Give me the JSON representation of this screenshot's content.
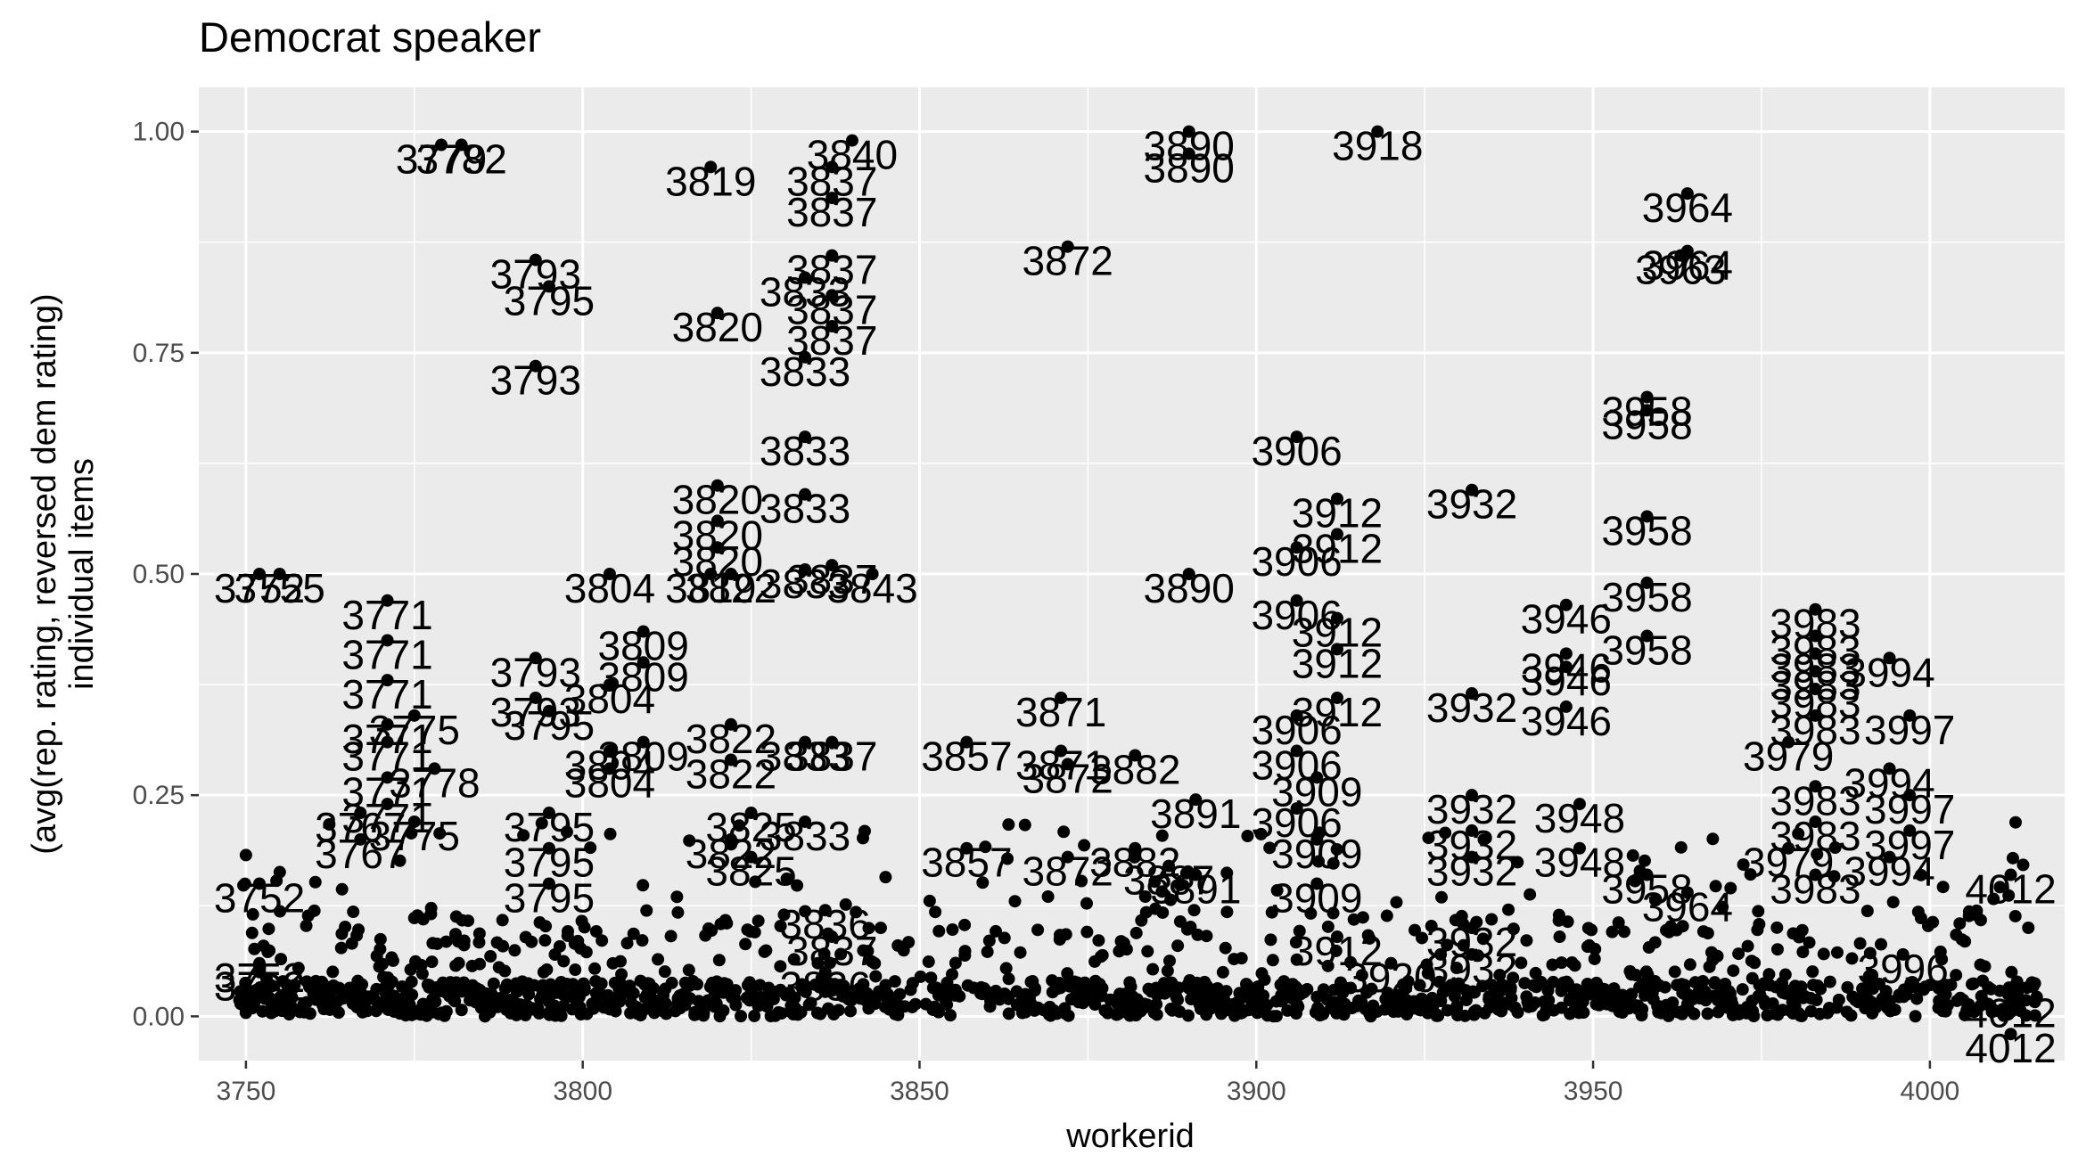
{
  "chart_data": {
    "type": "scatter",
    "title": "Democrat speaker",
    "xlabel": "workerid",
    "ylabel_line1": "(avg(rep. rating, reversed dem rating)",
    "ylabel_line2": "individual items",
    "xlim": [
      3743,
      4020
    ],
    "ylim": [
      -0.05,
      1.05
    ],
    "x_ticks": [
      3750,
      3800,
      3850,
      3900,
      3950,
      4000
    ],
    "x_tick_labels": [
      "3750",
      "3800",
      "3850",
      "3900",
      "3950",
      "4000"
    ],
    "y_ticks": [
      0.0,
      0.25,
      0.5,
      0.75,
      1.0
    ],
    "y_tick_labels": [
      "0.00",
      "0.25",
      "0.50",
      "0.75",
      "1.00"
    ],
    "labeled_points": [
      {
        "x": 3779,
        "y": 0.985,
        "label": "3779"
      },
      {
        "x": 3782,
        "y": 0.985,
        "label": "3782"
      },
      {
        "x": 3819,
        "y": 0.96,
        "label": "3819"
      },
      {
        "x": 3837,
        "y": 0.96,
        "label": "3837"
      },
      {
        "x": 3840,
        "y": 0.99,
        "label": "3840"
      },
      {
        "x": 3837,
        "y": 0.925,
        "label": "3837"
      },
      {
        "x": 3837,
        "y": 0.86,
        "label": "3837"
      },
      {
        "x": 3890,
        "y": 1.0,
        "label": "3890"
      },
      {
        "x": 3890,
        "y": 0.975,
        "label": "3890"
      },
      {
        "x": 3918,
        "y": 1.0,
        "label": "3918"
      },
      {
        "x": 3964,
        "y": 0.93,
        "label": "3964"
      },
      {
        "x": 3964,
        "y": 0.865,
        "label": "3964"
      },
      {
        "x": 3963,
        "y": 0.86,
        "label": "3963"
      },
      {
        "x": 3872,
        "y": 0.87,
        "label": "3872"
      },
      {
        "x": 3793,
        "y": 0.855,
        "label": "3793"
      },
      {
        "x": 3795,
        "y": 0.825,
        "label": "3795"
      },
      {
        "x": 3793,
        "y": 0.735,
        "label": "3793"
      },
      {
        "x": 3820,
        "y": 0.795,
        "label": "3820"
      },
      {
        "x": 3833,
        "y": 0.835,
        "label": "3833"
      },
      {
        "x": 3837,
        "y": 0.815,
        "label": "3837"
      },
      {
        "x": 3837,
        "y": 0.78,
        "label": "3837"
      },
      {
        "x": 3833,
        "y": 0.745,
        "label": "3833"
      },
      {
        "x": 3833,
        "y": 0.655,
        "label": "3833"
      },
      {
        "x": 3833,
        "y": 0.59,
        "label": "3833"
      },
      {
        "x": 3820,
        "y": 0.6,
        "label": "3820"
      },
      {
        "x": 3820,
        "y": 0.56,
        "label": "3820"
      },
      {
        "x": 3820,
        "y": 0.53,
        "label": "3820"
      },
      {
        "x": 3906,
        "y": 0.655,
        "label": "3906"
      },
      {
        "x": 3912,
        "y": 0.585,
        "label": "3912"
      },
      {
        "x": 3912,
        "y": 0.545,
        "label": "3912"
      },
      {
        "x": 3906,
        "y": 0.53,
        "label": "3906"
      },
      {
        "x": 3932,
        "y": 0.595,
        "label": "3932"
      },
      {
        "x": 3958,
        "y": 0.7,
        "label": "3958"
      },
      {
        "x": 3958,
        "y": 0.685,
        "label": "3958"
      },
      {
        "x": 3958,
        "y": 0.565,
        "label": "3958"
      },
      {
        "x": 3958,
        "y": 0.49,
        "label": "3958"
      },
      {
        "x": 3958,
        "y": 0.43,
        "label": "3958"
      },
      {
        "x": 3752,
        "y": 0.5,
        "label": "3752"
      },
      {
        "x": 3755,
        "y": 0.5,
        "label": "3755"
      },
      {
        "x": 3771,
        "y": 0.47,
        "label": "3771"
      },
      {
        "x": 3771,
        "y": 0.425,
        "label": "3771"
      },
      {
        "x": 3771,
        "y": 0.38,
        "label": "3771"
      },
      {
        "x": 3804,
        "y": 0.5,
        "label": "3804"
      },
      {
        "x": 3819,
        "y": 0.5,
        "label": "3819"
      },
      {
        "x": 3822,
        "y": 0.5,
        "label": "3822"
      },
      {
        "x": 3833,
        "y": 0.505,
        "label": "3833"
      },
      {
        "x": 3837,
        "y": 0.51,
        "label": "3837"
      },
      {
        "x": 3843,
        "y": 0.5,
        "label": "3843"
      },
      {
        "x": 3890,
        "y": 0.5,
        "label": "3890"
      },
      {
        "x": 3906,
        "y": 0.47,
        "label": "3906"
      },
      {
        "x": 3912,
        "y": 0.45,
        "label": "3912"
      },
      {
        "x": 3912,
        "y": 0.415,
        "label": "3912"
      },
      {
        "x": 3912,
        "y": 0.36,
        "label": "3912"
      },
      {
        "x": 3906,
        "y": 0.34,
        "label": "3906"
      },
      {
        "x": 3932,
        "y": 0.365,
        "label": "3932"
      },
      {
        "x": 3946,
        "y": 0.465,
        "label": "3946"
      },
      {
        "x": 3946,
        "y": 0.41,
        "label": "3946"
      },
      {
        "x": 3946,
        "y": 0.395,
        "label": "3946"
      },
      {
        "x": 3946,
        "y": 0.35,
        "label": "3946"
      },
      {
        "x": 3983,
        "y": 0.46,
        "label": "3983"
      },
      {
        "x": 3983,
        "y": 0.43,
        "label": "3983"
      },
      {
        "x": 3983,
        "y": 0.41,
        "label": "3983"
      },
      {
        "x": 3983,
        "y": 0.39,
        "label": "3983"
      },
      {
        "x": 3983,
        "y": 0.37,
        "label": "3983"
      },
      {
        "x": 3994,
        "y": 0.405,
        "label": "3994"
      },
      {
        "x": 3983,
        "y": 0.34,
        "label": "3983"
      },
      {
        "x": 3979,
        "y": 0.31,
        "label": "3979"
      },
      {
        "x": 3997,
        "y": 0.34,
        "label": "3997"
      },
      {
        "x": 3994,
        "y": 0.28,
        "label": "3994"
      },
      {
        "x": 3983,
        "y": 0.26,
        "label": "3983"
      },
      {
        "x": 3809,
        "y": 0.435,
        "label": "3809"
      },
      {
        "x": 3809,
        "y": 0.4,
        "label": "3809"
      },
      {
        "x": 3793,
        "y": 0.405,
        "label": "3793"
      },
      {
        "x": 3804,
        "y": 0.375,
        "label": "3804"
      },
      {
        "x": 3795,
        "y": 0.345,
        "label": "3795"
      },
      {
        "x": 3793,
        "y": 0.36,
        "label": "3793"
      },
      {
        "x": 3775,
        "y": 0.34,
        "label": "3775"
      },
      {
        "x": 3771,
        "y": 0.33,
        "label": "3771"
      },
      {
        "x": 3771,
        "y": 0.31,
        "label": "3771"
      },
      {
        "x": 3804,
        "y": 0.3,
        "label": "3804"
      },
      {
        "x": 3809,
        "y": 0.31,
        "label": "3809"
      },
      {
        "x": 3822,
        "y": 0.33,
        "label": "3822"
      },
      {
        "x": 3833,
        "y": 0.31,
        "label": "3833"
      },
      {
        "x": 3837,
        "y": 0.31,
        "label": "3837"
      },
      {
        "x": 3822,
        "y": 0.29,
        "label": "3822"
      },
      {
        "x": 3857,
        "y": 0.31,
        "label": "3857"
      },
      {
        "x": 3871,
        "y": 0.36,
        "label": "3871"
      },
      {
        "x": 3871,
        "y": 0.3,
        "label": "3871"
      },
      {
        "x": 3872,
        "y": 0.285,
        "label": "3872"
      },
      {
        "x": 3882,
        "y": 0.295,
        "label": "3882"
      },
      {
        "x": 3891,
        "y": 0.245,
        "label": "3891"
      },
      {
        "x": 3906,
        "y": 0.3,
        "label": "3906"
      },
      {
        "x": 3909,
        "y": 0.27,
        "label": "3909"
      },
      {
        "x": 3906,
        "y": 0.235,
        "label": "3906"
      },
      {
        "x": 3909,
        "y": 0.2,
        "label": "3909"
      },
      {
        "x": 3932,
        "y": 0.25,
        "label": "3932"
      },
      {
        "x": 3948,
        "y": 0.24,
        "label": "3948"
      },
      {
        "x": 3932,
        "y": 0.21,
        "label": "3932"
      },
      {
        "x": 3932,
        "y": 0.18,
        "label": "3932"
      },
      {
        "x": 3948,
        "y": 0.19,
        "label": "3948"
      },
      {
        "x": 3958,
        "y": 0.16,
        "label": "3958"
      },
      {
        "x": 3964,
        "y": 0.14,
        "label": "3964"
      },
      {
        "x": 3979,
        "y": 0.19,
        "label": "3979"
      },
      {
        "x": 3983,
        "y": 0.22,
        "label": "3983"
      },
      {
        "x": 3997,
        "y": 0.25,
        "label": "3997"
      },
      {
        "x": 3997,
        "y": 0.21,
        "label": "3997"
      },
      {
        "x": 3994,
        "y": 0.18,
        "label": "3994"
      },
      {
        "x": 3983,
        "y": 0.16,
        "label": "3983"
      },
      {
        "x": 4012,
        "y": 0.16,
        "label": "4012"
      },
      {
        "x": 3825,
        "y": 0.23,
        "label": "3825"
      },
      {
        "x": 3833,
        "y": 0.22,
        "label": "3833"
      },
      {
        "x": 3822,
        "y": 0.2,
        "label": "3822"
      },
      {
        "x": 3825,
        "y": 0.18,
        "label": "3825"
      },
      {
        "x": 3857,
        "y": 0.19,
        "label": "3857"
      },
      {
        "x": 3872,
        "y": 0.18,
        "label": "3872"
      },
      {
        "x": 3882,
        "y": 0.19,
        "label": "3882"
      },
      {
        "x": 3887,
        "y": 0.17,
        "label": "3887"
      },
      {
        "x": 3891,
        "y": 0.16,
        "label": "3891"
      },
      {
        "x": 3909,
        "y": 0.15,
        "label": "3909"
      },
      {
        "x": 3795,
        "y": 0.23,
        "label": "3795"
      },
      {
        "x": 3795,
        "y": 0.19,
        "label": "3795"
      },
      {
        "x": 3804,
        "y": 0.28,
        "label": "3804"
      },
      {
        "x": 3778,
        "y": 0.28,
        "label": "3778"
      },
      {
        "x": 3771,
        "y": 0.27,
        "label": "3771"
      },
      {
        "x": 3771,
        "y": 0.24,
        "label": "3771"
      },
      {
        "x": 3767,
        "y": 0.23,
        "label": "3767"
      },
      {
        "x": 3775,
        "y": 0.22,
        "label": "3775"
      },
      {
        "x": 3767,
        "y": 0.2,
        "label": "3767"
      },
      {
        "x": 3752,
        "y": 0.15,
        "label": "3752"
      },
      {
        "x": 3795,
        "y": 0.15,
        "label": "3795"
      },
      {
        "x": 3752,
        "y": 0.06,
        "label": "3752"
      },
      {
        "x": 3752,
        "y": 0.05,
        "label": "3752"
      },
      {
        "x": 3836,
        "y": 0.12,
        "label": "3836"
      },
      {
        "x": 3836,
        "y": 0.05,
        "label": "3836"
      },
      {
        "x": 3837,
        "y": 0.09,
        "label": "3837"
      },
      {
        "x": 3932,
        "y": 0.1,
        "label": "3932"
      },
      {
        "x": 3932,
        "y": 0.07,
        "label": "3932"
      },
      {
        "x": 3912,
        "y": 0.09,
        "label": "3912"
      },
      {
        "x": 3920,
        "y": 0.06,
        "label": "3920"
      },
      {
        "x": 3996,
        "y": 0.07,
        "label": "3996"
      },
      {
        "x": 4012,
        "y": 0.02,
        "label": "4012"
      },
      {
        "x": 4012,
        "y": -0.02,
        "label": "4012"
      }
    ]
  }
}
